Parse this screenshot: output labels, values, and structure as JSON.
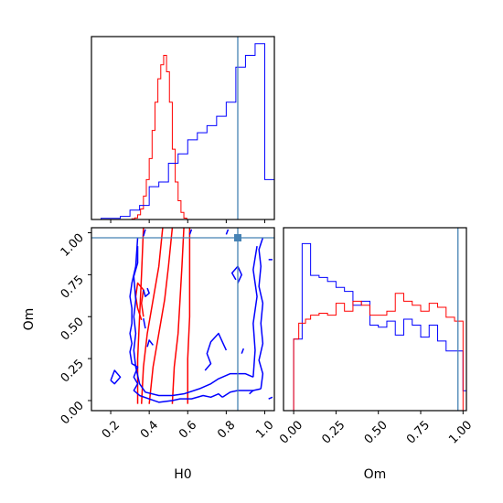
{
  "chart_data": [
    {
      "panel": "H0-marginal",
      "type": "histogram",
      "xlim": [
        0.1,
        1.05
      ],
      "truth": {
        "x": 0.86
      },
      "series": [
        {
          "color": "#ff0000",
          "edges": [
            0.31,
            0.325,
            0.34,
            0.355,
            0.37,
            0.385,
            0.4,
            0.415,
            0.43,
            0.445,
            0.46,
            0.475,
            0.49,
            0.505,
            0.52,
            0.535,
            0.55,
            0.565,
            0.58,
            0.595
          ],
          "counts": [
            0.003,
            0.007,
            0.02,
            0.045,
            0.1,
            0.17,
            0.26,
            0.38,
            0.5,
            0.6,
            0.66,
            0.7,
            0.63,
            0.5,
            0.3,
            0.16,
            0.08,
            0.03,
            0.006
          ]
        },
        {
          "color": "#0000ff",
          "edges": [
            0.15,
            0.25,
            0.3,
            0.35,
            0.4,
            0.45,
            0.5,
            0.55,
            0.6,
            0.65,
            0.7,
            0.75,
            0.8,
            0.85,
            0.9,
            0.95,
            1.0,
            1.05
          ],
          "counts": [
            0.005,
            0.013,
            0.04,
            0.06,
            0.14,
            0.16,
            0.24,
            0.28,
            0.34,
            0.37,
            0.4,
            0.44,
            0.5,
            0.65,
            0.7,
            0.75,
            0.17
          ]
        }
      ]
    },
    {
      "panel": "Om-marginal",
      "type": "histogram",
      "xlabel": "Om",
      "xlim": [
        -0.06,
        1.02
      ],
      "xticks": [
        "0.00",
        "0.25",
        "0.50",
        "0.75",
        "1.00"
      ],
      "truth": {
        "x": 0.97
      },
      "series": [
        {
          "color": "#0000ff",
          "edges": [
            -0.06,
            0.0,
            0.05,
            0.1,
            0.15,
            0.2,
            0.25,
            0.3,
            0.35,
            0.4,
            0.45,
            0.5,
            0.55,
            0.6,
            0.65,
            0.7,
            0.75,
            0.8,
            0.85,
            0.9,
            0.95,
            1.0,
            1.03
          ],
          "counts": [
            0.0,
            0.36,
            0.84,
            0.68,
            0.67,
            0.65,
            0.62,
            0.6,
            0.53,
            0.55,
            0.43,
            0.42,
            0.45,
            0.38,
            0.46,
            0.43,
            0.37,
            0.43,
            0.35,
            0.3,
            0.3,
            0.1
          ]
        },
        {
          "color": "#ff0000",
          "edges": [
            0.0,
            0.03,
            0.07,
            0.1,
            0.15,
            0.2,
            0.25,
            0.3,
            0.35,
            0.4,
            0.45,
            0.5,
            0.55,
            0.6,
            0.65,
            0.7,
            0.75,
            0.8,
            0.85,
            0.9,
            0.95,
            1.0
          ],
          "counts": [
            0.36,
            0.44,
            0.46,
            0.48,
            0.49,
            0.48,
            0.54,
            0.5,
            0.55,
            0.53,
            0.48,
            0.48,
            0.5,
            0.59,
            0.55,
            0.53,
            0.5,
            0.54,
            0.52,
            0.47,
            0.45
          ]
        }
      ]
    },
    {
      "panel": "H0-Om-contours",
      "type": "contour",
      "xlabel": "H0",
      "ylabel": "Om",
      "xlim": [
        0.1,
        1.05
      ],
      "ylim": [
        -0.06,
        1.03
      ],
      "xticks": [
        "0.2",
        "0.4",
        "0.6",
        "0.8",
        "1.0"
      ],
      "yticks": [
        "0.00",
        "0.25",
        "0.50",
        "0.75",
        "1.00"
      ],
      "truth": {
        "x": 0.86,
        "y": 0.97
      },
      "series": [
        {
          "color": "#ff0000",
          "lines": [
            [
              [
                0.4,
                -0.02
              ],
              [
                0.42,
                0.2
              ],
              [
                0.45,
                0.4
              ],
              [
                0.48,
                0.6
              ],
              [
                0.5,
                0.8
              ],
              [
                0.52,
                1.03
              ]
            ],
            [
              [
                0.36,
                -0.02
              ],
              [
                0.37,
                0.2
              ],
              [
                0.39,
                0.4
              ],
              [
                0.42,
                0.6
              ],
              [
                0.45,
                0.8
              ],
              [
                0.47,
                1.03
              ]
            ],
            [
              [
                0.52,
                -0.02
              ],
              [
                0.53,
                0.2
              ],
              [
                0.55,
                0.4
              ],
              [
                0.56,
                0.6
              ],
              [
                0.57,
                0.8
              ],
              [
                0.58,
                1.03
              ]
            ],
            [
              [
                0.34,
                -0.02
              ],
              [
                0.34,
                0.25
              ],
              [
                0.35,
                0.5
              ],
              [
                0.36,
                0.75
              ],
              [
                0.37,
                1.03
              ]
            ],
            [
              [
                0.6,
                -0.02
              ],
              [
                0.6,
                0.25
              ],
              [
                0.61,
                0.5
              ],
              [
                0.61,
                0.75
              ],
              [
                0.61,
                1.03
              ]
            ],
            [
              [
                0.36,
                0.48
              ],
              [
                0.34,
                0.55
              ],
              [
                0.33,
                0.62
              ],
              [
                0.34,
                0.7
              ],
              [
                0.37,
                0.66
              ],
              [
                0.36,
                0.58
              ],
              [
                0.37,
                0.5
              ]
            ]
          ]
        },
        {
          "color": "#0000ff",
          "lines": [
            [
              [
                0.34,
                0.97
              ],
              [
                0.33,
                0.8
              ],
              [
                0.31,
                0.7
              ],
              [
                0.3,
                0.62
              ],
              [
                0.31,
                0.55
              ],
              [
                0.31,
                0.46
              ],
              [
                0.3,
                0.4
              ],
              [
                0.31,
                0.34
              ],
              [
                0.3,
                0.29
              ],
              [
                0.31,
                0.22
              ],
              [
                0.34,
                0.2
              ],
              [
                0.32,
                0.14
              ],
              [
                0.34,
                0.1
              ],
              [
                0.32,
                0.06
              ],
              [
                0.35,
                0.03
              ],
              [
                0.4,
                0.01
              ],
              [
                0.45,
                -0.01
              ],
              [
                0.52,
                0.0
              ],
              [
                0.56,
                0.01
              ],
              [
                0.62,
                0.01
              ],
              [
                0.68,
                0.03
              ],
              [
                0.72,
                0.02
              ],
              [
                0.76,
                0.04
              ],
              [
                0.78,
                0.02
              ]
            ],
            [
              [
                0.78,
                0.02
              ],
              [
                0.82,
                0.05
              ],
              [
                0.86,
                0.06
              ],
              [
                0.9,
                0.06
              ],
              [
                0.94,
                0.06
              ],
              [
                0.98,
                0.07
              ]
            ],
            [
              [
                0.98,
                0.07
              ],
              [
                0.99,
                0.16
              ],
              [
                0.97,
                0.24
              ],
              [
                0.99,
                0.34
              ],
              [
                0.98,
                0.46
              ],
              [
                0.99,
                0.58
              ],
              [
                0.97,
                0.68
              ],
              [
                0.98,
                0.8
              ],
              [
                0.97,
                0.9
              ],
              [
                0.99,
                0.97
              ]
            ],
            [
              [
                0.34,
                0.92
              ],
              [
                0.34,
                0.82
              ],
              [
                0.32,
                0.74
              ],
              [
                0.33,
                0.6
              ],
              [
                0.32,
                0.5
              ],
              [
                0.33,
                0.4
              ],
              [
                0.32,
                0.3
              ],
              [
                0.33,
                0.2
              ],
              [
                0.35,
                0.1
              ],
              [
                0.38,
                0.05
              ],
              [
                0.45,
                0.03
              ],
              [
                0.52,
                0.03
              ],
              [
                0.58,
                0.04
              ],
              [
                0.66,
                0.07
              ],
              [
                0.72,
                0.1
              ],
              [
                0.76,
                0.13
              ],
              [
                0.82,
                0.16
              ],
              [
                0.9,
                0.16
              ],
              [
                0.94,
                0.14
              ]
            ],
            [
              [
                0.94,
                0.14
              ],
              [
                0.95,
                0.3
              ],
              [
                0.94,
                0.46
              ],
              [
                0.96,
                0.62
              ],
              [
                0.94,
                0.78
              ],
              [
                0.96,
                0.92
              ]
            ],
            [
              [
                0.69,
                0.18
              ],
              [
                0.72,
                0.22
              ],
              [
                0.7,
                0.28
              ],
              [
                0.72,
                0.35
              ],
              [
                0.76,
                0.4
              ],
              [
                0.78,
                0.35
              ],
              [
                0.8,
                0.3
              ]
            ],
            [
              [
                0.85,
                0.72
              ],
              [
                0.83,
                0.76
              ],
              [
                0.86,
                0.8
              ],
              [
                0.88,
                0.75
              ],
              [
                0.86,
                0.7
              ]
            ],
            [
              [
                0.2,
                0.12
              ],
              [
                0.22,
                0.18
              ],
              [
                0.25,
                0.14
              ],
              [
                0.22,
                0.1
              ],
              [
                0.2,
                0.12
              ]
            ],
            [
              [
                0.37,
                0.66
              ],
              [
                0.38,
                0.62
              ],
              [
                0.4,
                0.64
              ],
              [
                0.39,
                0.67
              ]
            ],
            [
              [
                0.38,
                0.43
              ],
              [
                0.37,
                0.49
              ]
            ],
            [
              [
                0.39,
                0.32
              ],
              [
                0.4,
                0.36
              ],
              [
                0.42,
                0.33
              ]
            ],
            [
              [
                0.61,
                0.99
              ],
              [
                0.62,
                1.02
              ]
            ],
            [
              [
                0.8,
                0.99
              ],
              [
                0.81,
                1.02
              ]
            ],
            [
              [
                0.88,
                0.28
              ],
              [
                0.89,
                0.31
              ]
            ],
            [
              [
                0.92,
                0.04
              ],
              [
                0.94,
                0.06
              ]
            ],
            [
              [
                1.02,
                0.01
              ],
              [
                1.04,
                0.02
              ]
            ],
            [
              [
                1.02,
                0.84
              ],
              [
                1.04,
                0.84
              ]
            ],
            [
              [
                0.37,
                0.98
              ],
              [
                0.38,
                1.02
              ]
            ]
          ]
        }
      ]
    }
  ]
}
